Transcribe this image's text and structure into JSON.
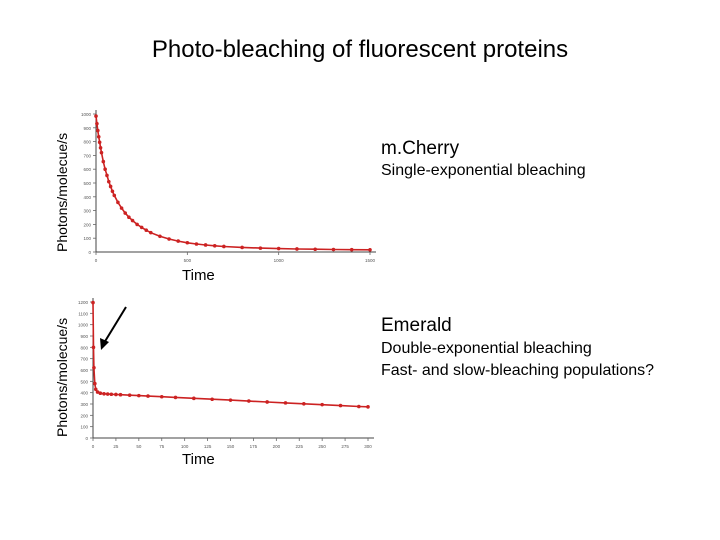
{
  "title": "Photo-bleaching of fluorescent proteins",
  "chart_data": [
    {
      "type": "scatter",
      "name": "m.Cherry",
      "subtitle": "Single-exponential bleaching",
      "ylabel": "Photons/molecue/s",
      "xlabel": "Time",
      "xlim": [
        0,
        1500
      ],
      "ylim": [
        0,
        1000
      ],
      "x_ticks": [
        "0",
        "500",
        "1000",
        "1500"
      ],
      "y_ticks": [
        "0",
        "100",
        "200",
        "300",
        "400",
        "500",
        "600",
        "700",
        "800",
        "900",
        "1000"
      ],
      "series": [
        {
          "color": "#cc2222",
          "x": [
            0,
            5,
            10,
            15,
            20,
            25,
            30,
            40,
            50,
            60,
            70,
            80,
            90,
            100,
            120,
            140,
            160,
            180,
            200,
            225,
            250,
            275,
            300,
            350,
            400,
            450,
            500,
            550,
            600,
            650,
            700,
            800,
            900,
            1000,
            1100,
            1200,
            1300,
            1400,
            1500
          ],
          "y": [
            985,
            930,
            880,
            835,
            795,
            755,
            720,
            655,
            600,
            555,
            510,
            475,
            440,
            410,
            360,
            318,
            282,
            252,
            228,
            200,
            178,
            158,
            140,
            114,
            94,
            79,
            67,
            58,
            51,
            45,
            40,
            33,
            28,
            25,
            22,
            20,
            18,
            17,
            16
          ]
        }
      ]
    },
    {
      "type": "scatter",
      "name": "Emerald",
      "subtitle": "Double-exponential bleaching",
      "annotation": "Fast- and slow-bleaching populations?",
      "ylabel": "Photons/molecue/s",
      "xlabel": "Time",
      "xlim": [
        0,
        300
      ],
      "ylim": [
        0,
        1200
      ],
      "x_ticks": [
        "0",
        "25",
        "50",
        "75",
        "100",
        "125",
        "150",
        "175",
        "200",
        "225",
        "250",
        "275",
        "300"
      ],
      "y_ticks": [
        "0",
        "100",
        "200",
        "300",
        "400",
        "500",
        "600",
        "700",
        "800",
        "900",
        "1000",
        "1100",
        "1200"
      ],
      "series": [
        {
          "color": "#cc2222",
          "x": [
            0,
            0.5,
            1,
            2,
            3,
            5,
            8,
            12,
            16,
            20,
            25,
            30,
            40,
            50,
            60,
            75,
            90,
            110,
            130,
            150,
            170,
            190,
            210,
            230,
            250,
            270,
            290,
            300
          ],
          "y": [
            1195,
            800,
            620,
            480,
            430,
            405,
            395,
            390,
            388,
            386,
            384,
            382,
            378,
            374,
            370,
            364,
            358,
            350,
            342,
            334,
            326,
            318,
            310,
            302,
            294,
            286,
            278,
            275
          ]
        }
      ]
    }
  ]
}
